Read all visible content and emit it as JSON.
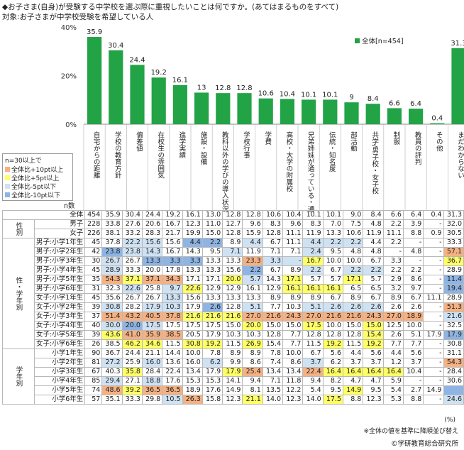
{
  "header": {
    "title": "◆お子さま(自身)が受験する中学校を選ぶ際に重視したいことは何ですか。(あてはまるものをすべて)",
    "subtitle": "対象:お子さまが中学校受験を希望している人"
  },
  "legend": {
    "title": "n=30以上で",
    "items": [
      "全体比+10pt以上",
      "全体比+5pt以上",
      "全体比-5pt以下",
      "全体比-10pt以下"
    ],
    "colors": [
      "#f4b183",
      "#ffff66",
      "#cfe2f3",
      "#8eb4e3"
    ]
  },
  "n_label": "n数",
  "unit": "(%)",
  "note": "※全体の値を基準に降順並び替え",
  "credit": "©学研教育総合研究所",
  "chart_data": {
    "type": "bar",
    "series": [
      {
        "name": "全体[n=454]",
        "values": [
          35.9,
          30.4,
          24.4,
          19.2,
          16.1,
          13.0,
          12.8,
          12.8,
          10.6,
          10.4,
          10.1,
          10.1,
          9.0,
          8.4,
          6.6,
          6.4,
          0.4,
          31.3
        ]
      }
    ],
    "categories": [
      "自宅からの距離",
      "学校の教育方針",
      "偏差値",
      "在校生の雰囲気",
      "進学実績",
      "施設・設備",
      "教科以外の学びの導入状況",
      "学校行事",
      "学費",
      "高校・大学の附属校",
      "兄弟姉妹が通っている・通っていた",
      "伝統・知名度",
      "部活動",
      "共学/男子校・女子校",
      "制服",
      "教員の評判",
      "その他",
      "まだわからない"
    ],
    "yticks": [
      "0%",
      "20%",
      "40%"
    ],
    "ylim": [
      0,
      40
    ],
    "color": "#22a346",
    "rows": [
      {
        "group": "",
        "label": "全体",
        "n": "454",
        "v": [
          "35.9",
          "30.4",
          "24.4",
          "19.2",
          "16.1",
          "13.0",
          "12.8",
          "12.8",
          "10.6",
          "10.4",
          "10.1",
          "10.1",
          "9.0",
          "8.4",
          "6.6",
          "6.4",
          "0.4",
          "31.3"
        ],
        "c": []
      },
      {
        "group": "性別",
        "label": "男子",
        "n": "228",
        "v": [
          "33.8",
          "27.6",
          "20.6",
          "16.7",
          "12.3",
          "11.0",
          "12.7",
          "9.6",
          "8.3",
          "9.6",
          "8.3",
          "7.0",
          "7.5",
          "4.8",
          "2.2",
          "3.9",
          "-",
          "32.0"
        ],
        "c": []
      },
      {
        "group": "",
        "label": "女子",
        "n": "226",
        "v": [
          "38.1",
          "33.2",
          "28.3",
          "21.7",
          "19.9",
          "15.0",
          "12.8",
          "15.9",
          "12.8",
          "11.1",
          "11.9",
          "13.3",
          "10.6",
          "11.9",
          "11.1",
          "8.8",
          "0.9",
          "30.5"
        ],
        "c": []
      },
      {
        "group": "性・学年別",
        "label": "男子:小学1年生",
        "n": "45",
        "v": [
          "37.8",
          "22.2",
          "15.6",
          "15.6",
          "4.4",
          "2.2",
          "8.9",
          "4.4",
          "6.7",
          "11.1",
          "4.4",
          "2.2",
          "2.2",
          "4.4",
          "2.2",
          "-",
          "-",
          "33.3"
        ],
        "c": [
          "",
          "lo2",
          "lo2",
          "",
          "lo1",
          "lo1",
          "",
          "lo2",
          "",
          "",
          "lo2",
          "lo2",
          "lo2",
          "",
          "",
          "",
          "",
          ""
        ]
      },
      {
        "group": "",
        "label": "男子:小学2年生",
        "n": "42",
        "v": [
          "23.8",
          "23.8",
          "14.3",
          "16.7",
          "14.3",
          "9.5",
          "7.1",
          "11.9",
          "7.1",
          "7.1",
          "2.4",
          "9.5",
          "4.8",
          "4.8",
          "-",
          "4.8",
          "-",
          "57.1"
        ],
        "c": [
          "lo1",
          "lo2",
          "lo2",
          "",
          "",
          "",
          "lo2",
          "",
          "",
          "",
          "lo2",
          "",
          "",
          "",
          "",
          "",
          "",
          "hi1"
        ]
      },
      {
        "group": "",
        "label": "男子:小学3年生",
        "n": "30",
        "v": [
          "26.7",
          "26.7",
          "13.3",
          "3.3",
          "3.3",
          "13.3",
          "13.3",
          "23.3",
          "3.3",
          "-",
          "16.7",
          "10.0",
          "10.0",
          "6.7",
          "3.3",
          "-",
          "-",
          "36.7"
        ],
        "c": [
          "lo2",
          "",
          "lo1",
          "lo1",
          "lo1",
          "",
          "",
          "hi1",
          "lo2",
          "lo2",
          "hi2",
          "",
          "",
          "",
          "",
          "",
          "",
          "hi2"
        ]
      },
      {
        "group": "",
        "label": "男子:小学4年生",
        "n": "45",
        "v": [
          "28.9",
          "33.3",
          "20.0",
          "17.8",
          "13.3",
          "13.3",
          "15.6",
          "2.2",
          "6.7",
          "8.9",
          "2.2",
          "6.7",
          "2.2",
          "2.2",
          "2.2",
          "2.2",
          "-",
          "28.9"
        ],
        "c": [
          "lo2",
          "",
          "",
          "",
          "",
          "",
          "",
          "lo1",
          "",
          "",
          "lo2",
          "",
          "lo2",
          "lo2",
          "",
          "",
          "",
          ""
        ]
      },
      {
        "group": "",
        "label": "男子:小学5年生",
        "n": "35",
        "v": [
          "54.3",
          "37.1",
          "37.1",
          "34.3",
          "17.1",
          "17.1",
          "20.0",
          "5.7",
          "14.3",
          "17.1",
          "5.7",
          "5.7",
          "17.1",
          "5.7",
          "2.9",
          "8.6",
          "-",
          "11.4"
        ],
        "c": [
          "hi1",
          "hi2",
          "hi1",
          "hi1",
          "",
          "",
          "hi2",
          "lo2",
          "",
          "hi2",
          "",
          "",
          "hi2",
          "",
          "",
          "",
          "",
          "lo1"
        ]
      },
      {
        "group": "",
        "label": "男子:小学6年生",
        "n": "31",
        "v": [
          "32.3",
          "22.6",
          "25.8",
          "9.7",
          "22.6",
          "12.9",
          "12.9",
          "16.1",
          "12.9",
          "16.1",
          "16.1",
          "16.1",
          "6.5",
          "6.5",
          "3.2",
          "9.7",
          "-",
          "19.4"
        ],
        "c": [
          "",
          "lo2",
          "",
          "lo2",
          "hi2",
          "",
          "",
          "",
          "",
          "hi2",
          "hi2",
          "hi2",
          "",
          "",
          "",
          "",
          "",
          "lo1"
        ]
      },
      {
        "group": "",
        "label": "女子:小学1年生",
        "n": "45",
        "v": [
          "35.6",
          "26.7",
          "26.7",
          "13.3",
          "15.6",
          "13.3",
          "13.3",
          "13.3",
          "8.9",
          "8.9",
          "8.9",
          "6.7",
          "8.9",
          "6.7",
          "8.9",
          "6.7",
          "11.1",
          "28.9"
        ],
        "c": [
          "",
          "",
          "",
          "lo2",
          "",
          "",
          "",
          "",
          "",
          "",
          "",
          "",
          "",
          "",
          "",
          "",
          "",
          ""
        ]
      },
      {
        "group": "",
        "label": "女子:小学2年生",
        "n": "39",
        "v": [
          "30.8",
          "28.2",
          "17.9",
          "10.3",
          "17.9",
          "2.6",
          "12.8",
          "5.1",
          "7.7",
          "10.3",
          "5.1",
          "2.6",
          "2.6",
          "2.6",
          "2.6",
          "2.6",
          "-",
          "51.3"
        ],
        "c": [
          "lo2",
          "",
          "lo2",
          "lo2",
          "",
          "lo1",
          "",
          "lo2",
          "",
          "",
          "lo2",
          "lo2",
          "lo2",
          "lo2",
          "",
          "",
          "",
          "hi1"
        ]
      },
      {
        "group": "",
        "label": "女子:小学3年生",
        "n": "37",
        "v": [
          "51.4",
          "43.2",
          "40.5",
          "37.8",
          "21.6",
          "21.6",
          "21.6",
          "27.0",
          "21.6",
          "24.3",
          "27.0",
          "21.6",
          "21.6",
          "24.3",
          "27.0",
          "18.9",
          "-",
          "21.6"
        ],
        "c": [
          "hi1",
          "hi1",
          "hi1",
          "hi1",
          "hi2",
          "hi2",
          "hi2",
          "hi1",
          "hi1",
          "hi1",
          "hi1",
          "hi1",
          "hi1",
          "hi1",
          "hi1",
          "hi1",
          "",
          "lo2"
        ]
      },
      {
        "group": "",
        "label": "女子:小学4年生",
        "n": "40",
        "v": [
          "30.0",
          "20.0",
          "17.5",
          "17.5",
          "17.5",
          "17.5",
          "15.0",
          "20.0",
          "15.0",
          "15.0",
          "17.5",
          "10.0",
          "15.0",
          "15.0",
          "12.5",
          "10.0",
          "-",
          "32.5"
        ],
        "c": [
          "lo2",
          "lo1",
          "lo2",
          "",
          "",
          "",
          "",
          "hi2",
          "",
          "",
          "hi2",
          "",
          "",
          "hi2",
          "",
          "",
          "",
          ""
        ]
      },
      {
        "group": "",
        "label": "女子:小学5年生",
        "n": "39",
        "v": [
          "43.6",
          "41.0",
          "35.9",
          "38.5",
          "20.5",
          "17.9",
          "10.3",
          "10.3",
          "12.8",
          "7.7",
          "12.8",
          "12.8",
          "12.8",
          "15.4",
          "2.6",
          "5.1",
          "17.9",
          " 17.9"
        ],
        "c": [
          "hi2",
          "hi1",
          "hi1",
          "hi1",
          "",
          "",
          "",
          "",
          "",
          "",
          "",
          "",
          "",
          "hi2",
          "",
          "",
          "",
          "lo1"
        ]
      },
      {
        "group": "",
        "label": "女子:小学6年生",
        "n": "26",
        "v": [
          "38.5",
          "46.2",
          "34.6",
          "11.5",
          "30.8",
          "19.2",
          "11.5",
          "26.9",
          "15.4",
          "7.7",
          "11.5",
          "19.2",
          "11.5",
          "19.2",
          "7.7",
          "7.7",
          "-",
          "30.8"
        ],
        "c": [
          "",
          "hi2",
          "hi2",
          "",
          "hi2",
          "hi2",
          "",
          "hi2",
          "",
          "",
          "",
          "hi2",
          "",
          "hi2",
          "",
          "",
          "",
          ""
        ]
      },
      {
        "group": "学年別",
        "label": "小学1年生",
        "n": "90",
        "v": [
          "36.7",
          "24.4",
          "21.1",
          "14.4",
          "10.0",
          "7.8",
          "8.9",
          "8.9",
          "7.8",
          "10.0",
          "6.7",
          "5.6",
          "4.4",
          "5.6",
          "4.4",
          "5.6",
          "-",
          "31.1"
        ],
        "c": [
          "",
          "",
          "",
          "",
          "",
          "",
          "",
          "",
          "",
          "",
          "",
          "",
          "",
          "",
          "",
          "",
          "",
          ""
        ]
      },
      {
        "group": "",
        "label": "小学2年生",
        "n": "81",
        "v": [
          "27.2",
          "25.9",
          "16.0",
          "13.6",
          "16.0",
          "6.2",
          "9.9",
          "8.6",
          "7.4",
          "8.6",
          "3.7",
          "6.2",
          "3.7",
          "3.7",
          "1.2",
          "3.7",
          "-",
          "54.3"
        ],
        "c": [
          "lo2",
          "",
          "lo2",
          "",
          "",
          "lo2",
          "",
          "",
          "",
          "",
          "lo2",
          "",
          "",
          "",
          "",
          "",
          "",
          "hi1"
        ]
      },
      {
        "group": "",
        "label": "小学3年生",
        "n": "67",
        "v": [
          "40.3",
          "35.8",
          "28.4",
          "22.4",
          "13.4",
          "17.9",
          "17.9",
          "25.4",
          "13.4",
          "13.4",
          "22.4",
          "16.4",
          "16.4",
          "16.4",
          "16.4",
          "10.4",
          "-",
          "28.4"
        ],
        "c": [
          "",
          "hi2",
          "",
          "",
          "",
          "",
          "hi2",
          "hi1",
          "",
          "",
          "hi1",
          "hi2",
          "hi2",
          "hi2",
          "hi2",
          "",
          "",
          ""
        ]
      },
      {
        "group": "",
        "label": "小学4年生",
        "n": "85",
        "v": [
          "29.4",
          "27.1",
          "18.8",
          "17.6",
          "15.3",
          "15.3",
          "14.1",
          "9.4",
          "7.1",
          "11.8",
          "9.4",
          "8.2",
          "4.7",
          "4.7",
          "5.9",
          "-",
          "-",
          "30.6"
        ],
        "c": [
          "lo2",
          "",
          "lo2",
          "",
          "",
          "",
          "",
          "",
          "",
          "",
          "",
          "",
          "",
          "",
          "",
          "",
          "",
          ""
        ]
      },
      {
        "group": "",
        "label": "小学5年生",
        "n": "74",
        "v": [
          "48.6",
          "39.2",
          "36.5",
          "36.5",
          "18.9",
          "17.6",
          "14.9",
          "8.1",
          "13.5",
          "12.2",
          "5.4",
          "9.5",
          "14.9",
          "9.5",
          "5.4",
          "2.7",
          "14.9",
          " "
        ],
        "c": [
          "hi1",
          "hi2",
          "hi1",
          "hi1",
          "",
          "",
          "",
          "",
          "",
          "",
          "",
          "",
          "hi2",
          "",
          "",
          "",
          "",
          "lo1"
        ]
      },
      {
        "group": "",
        "label": "小学6年生",
        "n": "57",
        "v": [
          "35.1",
          "33.3",
          "29.8",
          "10.5",
          "26.3",
          "15.8",
          "12.3",
          "21.1",
          "14.0",
          "12.3",
          "14.0",
          "17.5",
          "8.8",
          "12.3",
          "5.3",
          "8.8",
          "-",
          "24.6"
        ],
        "c": [
          "",
          "",
          "",
          "lo2",
          "hi1",
          "",
          "",
          "hi2",
          "",
          "",
          "",
          "hi2",
          "",
          "",
          "",
          "",
          "",
          "lo2"
        ]
      }
    ]
  }
}
